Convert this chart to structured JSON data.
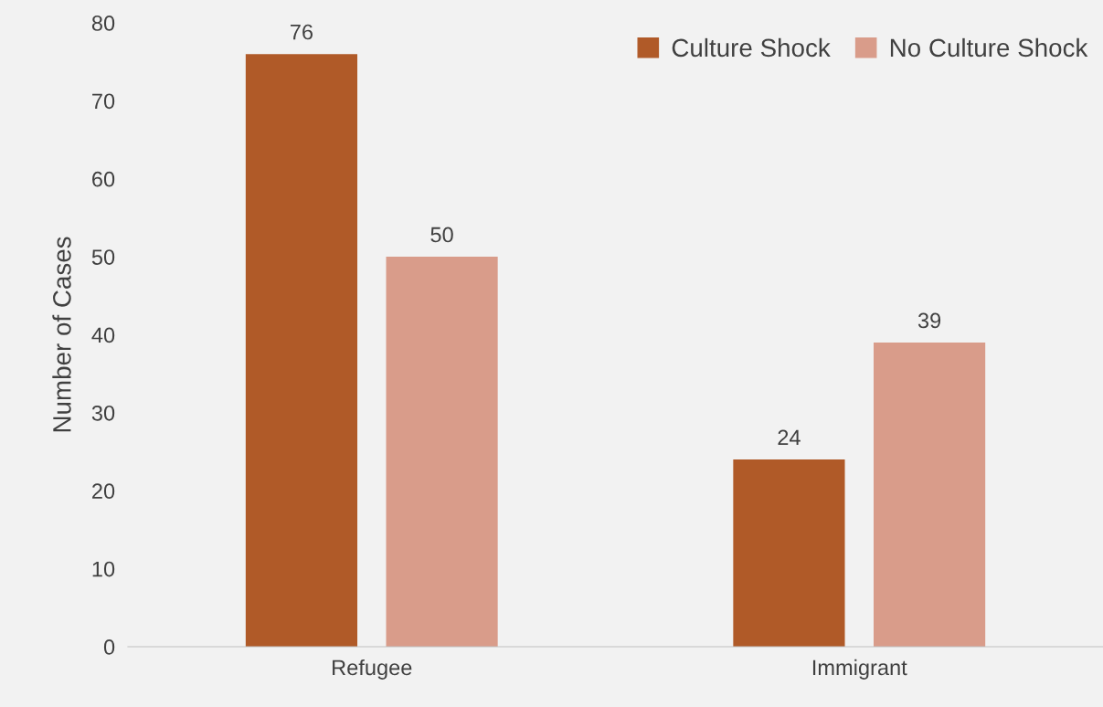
{
  "chart_data": {
    "type": "bar",
    "ylabel": "Number of Cases",
    "categories": [
      "Refugee",
      "Immigrant"
    ],
    "series": [
      {
        "name": "Culture Shock",
        "color": "#b05a28",
        "values": [
          76,
          24
        ]
      },
      {
        "name": "No Culture Shock",
        "color": "#d99c8a",
        "values": [
          50,
          39
        ]
      }
    ],
    "ylim": [
      0,
      80
    ],
    "yticks": [
      0,
      10,
      20,
      30,
      40,
      50,
      60,
      70,
      80
    ],
    "data_labels": true,
    "grid": false,
    "legend": "top right"
  }
}
